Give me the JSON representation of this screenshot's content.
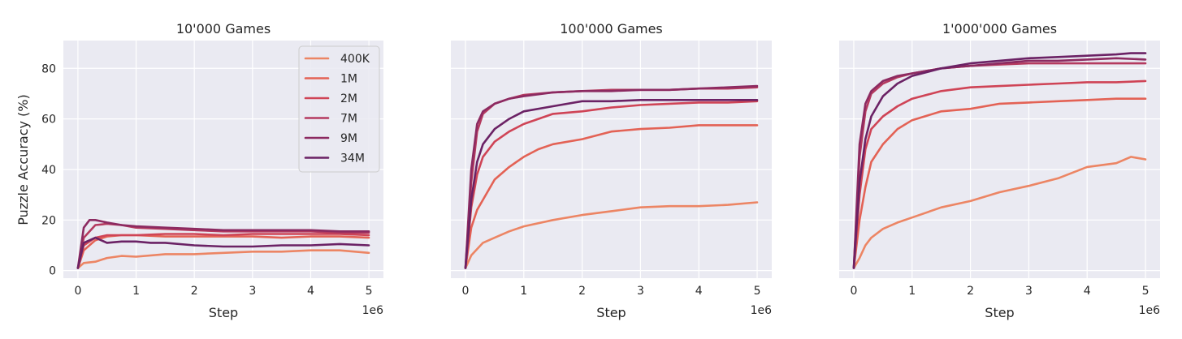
{
  "chart_data": {
    "type": "line",
    "ylabel": "Puzzle Accuracy (%)",
    "xlabel": "Step",
    "x_exponent_label": "1e6",
    "xlim": [
      -0.25,
      5.25
    ],
    "ylim": [
      -3,
      91
    ],
    "xticks": [
      0,
      1,
      2,
      3,
      4,
      5
    ],
    "yticks": [
      0,
      20,
      40,
      60,
      80
    ],
    "grid": true,
    "legend_position": "top-right of first panel",
    "series_names": [
      "400K",
      "1M",
      "2M",
      "7M",
      "9M",
      "34M"
    ],
    "series_colors": [
      "#ec8564",
      "#e36255",
      "#cf4456",
      "#b43a5f",
      "#8c2a61",
      "#6b2265"
    ],
    "panels": [
      {
        "title": "10'000 Games",
        "series": [
          {
            "name": "400K",
            "x": [
              0,
              0.1,
              0.3,
              0.5,
              0.75,
              1,
              1.5,
              2,
              2.5,
              3,
              3.5,
              4,
              4.5,
              5
            ],
            "y": [
              1,
              3,
              3.5,
              5,
              5.8,
              5.5,
              6.5,
              6.5,
              7,
              7.5,
              7.5,
              8,
              8,
              7
            ]
          },
          {
            "name": "1M",
            "x": [
              0,
              0.1,
              0.3,
              0.5,
              0.75,
              1,
              1.5,
              2,
              2.5,
              3,
              3.5,
              4,
              4.5,
              5
            ],
            "y": [
              1,
              8,
              12,
              13.5,
              14,
              14,
              13.5,
              13.5,
              13.5,
              13.5,
              13,
              13.5,
              13.5,
              13
            ]
          },
          {
            "name": "2M",
            "x": [
              0,
              0.1,
              0.3,
              0.5,
              0.75,
              1,
              1.5,
              2,
              2.5,
              3,
              3.5,
              4,
              4.5,
              5
            ],
            "y": [
              1,
              10,
              13,
              14,
              14,
              14,
              14.5,
              14.5,
              14,
              14.5,
              14.5,
              14.5,
              14.5,
              14
            ]
          },
          {
            "name": "7M",
            "x": [
              0,
              0.1,
              0.3,
              0.5,
              0.75,
              1,
              1.5,
              2,
              2.5,
              3,
              3.5,
              4,
              4.5,
              5
            ],
            "y": [
              1,
              13,
              18,
              18.5,
              18,
              17,
              16.5,
              16,
              15.5,
              15.5,
              15.5,
              15.5,
              15,
              15
            ]
          },
          {
            "name": "9M",
            "x": [
              0,
              0.1,
              0.2,
              0.3,
              0.5,
              0.75,
              1,
              1.5,
              2,
              2.5,
              3,
              3.5,
              4,
              4.5,
              5
            ],
            "y": [
              1,
              17,
              20,
              20,
              19,
              18,
              17.5,
              17,
              16.5,
              16,
              16,
              16,
              16,
              15.5,
              15.5
            ]
          },
          {
            "name": "34M",
            "x": [
              0,
              0.1,
              0.3,
              0.5,
              0.75,
              1,
              1.25,
              1.5,
              2,
              2.5,
              3,
              3.5,
              4,
              4.5,
              5
            ],
            "y": [
              1,
              11,
              13,
              11,
              11.5,
              11.5,
              11,
              11,
              10,
              9.5,
              9.5,
              10,
              10,
              10.5,
              10
            ]
          }
        ]
      },
      {
        "title": "100'000 Games",
        "series": [
          {
            "name": "400K",
            "x": [
              0,
              0.1,
              0.3,
              0.5,
              0.75,
              1,
              1.5,
              2,
              2.5,
              3,
              3.5,
              4,
              4.5,
              5
            ],
            "y": [
              1,
              6,
              11,
              13,
              15.5,
              17.5,
              20,
              22,
              23.5,
              25,
              25.5,
              25.5,
              26,
              27
            ]
          },
          {
            "name": "1M",
            "x": [
              0,
              0.1,
              0.2,
              0.3,
              0.5,
              0.75,
              1,
              1.25,
              1.5,
              2,
              2.5,
              3,
              3.5,
              4,
              4.5,
              5
            ],
            "y": [
              1,
              17,
              24,
              28,
              36,
              41,
              45,
              48,
              50,
              52,
              55,
              56,
              56.5,
              57.5,
              57.5,
              57.5
            ]
          },
          {
            "name": "2M",
            "x": [
              0,
              0.1,
              0.2,
              0.3,
              0.5,
              0.75,
              1,
              1.5,
              2,
              2.5,
              3,
              3.5,
              4,
              4.5,
              5
            ],
            "y": [
              1,
              25,
              38,
              45,
              51,
              55,
              58,
              62,
              63,
              64.5,
              65.5,
              66,
              66.5,
              66.5,
              67
            ]
          },
          {
            "name": "7M",
            "x": [
              0,
              0.1,
              0.2,
              0.3,
              0.5,
              0.75,
              1,
              1.5,
              2,
              2.5,
              3,
              3.5,
              4,
              4.5,
              5
            ],
            "y": [
              1,
              35,
              55,
              62,
              66,
              68,
              69.5,
              70.5,
              71,
              71.5,
              71.5,
              71.5,
              72,
              72,
              72.5
            ]
          },
          {
            "name": "9M",
            "x": [
              0,
              0.1,
              0.2,
              0.3,
              0.5,
              0.75,
              1,
              1.5,
              2,
              2.5,
              3,
              3.5,
              4,
              4.5,
              5
            ],
            "y": [
              1,
              40,
              58,
              63,
              66,
              68,
              69,
              70.5,
              71,
              71,
              71.5,
              71.5,
              72,
              72.5,
              73
            ]
          },
          {
            "name": "34M",
            "x": [
              0,
              0.1,
              0.2,
              0.3,
              0.5,
              0.75,
              1,
              1.5,
              2,
              2.5,
              3,
              3.5,
              4,
              4.5,
              5
            ],
            "y": [
              1,
              28,
              43,
              50,
              56,
              60,
              63,
              65,
              67,
              67,
              67.5,
              67.5,
              67.5,
              67.5,
              67.5
            ]
          }
        ]
      },
      {
        "title": "1'000'000 Games",
        "series": [
          {
            "name": "400K",
            "x": [
              0,
              0.1,
              0.2,
              0.3,
              0.5,
              0.75,
              1,
              1.5,
              2,
              2.5,
              3,
              3.5,
              4,
              4.5,
              4.75,
              5
            ],
            "y": [
              1,
              5,
              10,
              13,
              16.5,
              19,
              21,
              25,
              27.5,
              31,
              33.5,
              36.5,
              41,
              42.5,
              45,
              44
            ]
          },
          {
            "name": "1M",
            "x": [
              0,
              0.1,
              0.2,
              0.3,
              0.5,
              0.75,
              1,
              1.5,
              2,
              2.5,
              3,
              3.5,
              4,
              4.5,
              5
            ],
            "y": [
              1,
              20,
              33,
              43,
              50,
              56,
              59.5,
              63,
              64,
              66,
              66.5,
              67,
              67.5,
              68,
              68
            ]
          },
          {
            "name": "2M",
            "x": [
              0,
              0.1,
              0.2,
              0.3,
              0.5,
              0.75,
              1,
              1.5,
              2,
              2.5,
              3,
              3.5,
              4,
              4.5,
              5
            ],
            "y": [
              1,
              30,
              48,
              56,
              61,
              65,
              68,
              71,
              72.5,
              73,
              73.5,
              74,
              74.5,
              74.5,
              75
            ]
          },
          {
            "name": "7M",
            "x": [
              0,
              0.1,
              0.2,
              0.3,
              0.5,
              0.75,
              1,
              1.5,
              2,
              2.5,
              3,
              3.5,
              4,
              4.5,
              5
            ],
            "y": [
              1,
              45,
              63,
              70,
              74,
              76.5,
              78,
              80,
              81,
              81.5,
              82,
              82,
              82,
              82,
              82
            ]
          },
          {
            "name": "9M",
            "x": [
              0,
              0.1,
              0.2,
              0.3,
              0.5,
              0.75,
              1,
              1.5,
              2,
              2.5,
              3,
              3.5,
              4,
              4.5,
              5
            ],
            "y": [
              1,
              50,
              66,
              71,
              75,
              77,
              78,
              80,
              81,
              82,
              83,
              83,
              83.5,
              84,
              83.5
            ]
          },
          {
            "name": "34M",
            "x": [
              0,
              0.1,
              0.2,
              0.3,
              0.5,
              0.75,
              1,
              1.5,
              2,
              2.5,
              3,
              3.5,
              4,
              4.5,
              4.75,
              5
            ],
            "y": [
              1,
              35,
              52,
              61,
              69,
              74,
              77,
              80,
              82,
              83,
              84,
              84.5,
              85,
              85.5,
              86,
              86
            ]
          }
        ]
      }
    ]
  }
}
